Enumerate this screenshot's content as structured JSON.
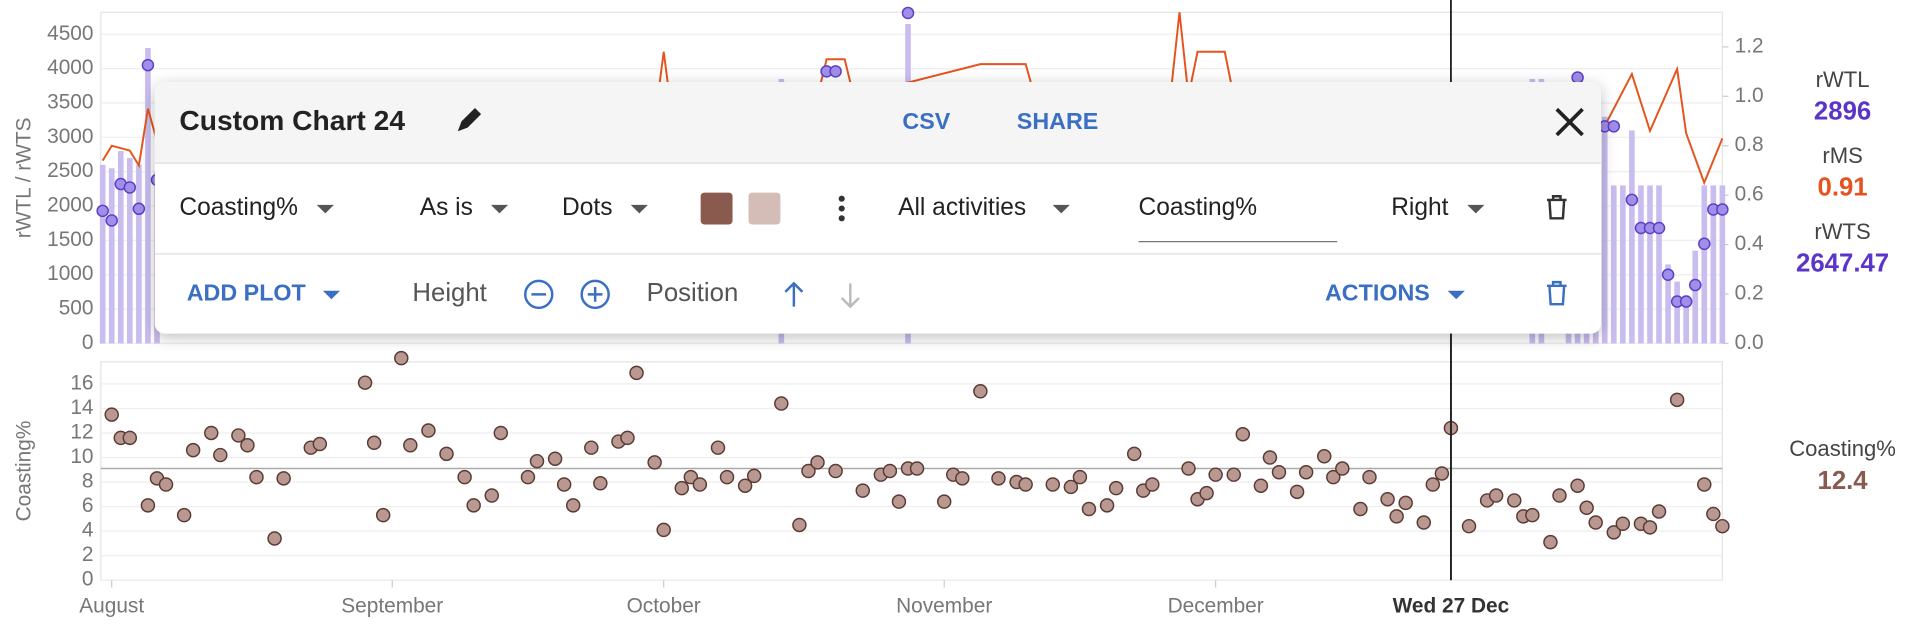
{
  "top_chart": {
    "type": "bar",
    "y_label": "rWTL / rWTS",
    "xlim": [
      -1.2,
      178
    ],
    "ylim": [
      0,
      4820
    ],
    "yticks": [
      0,
      500,
      1000,
      1500,
      2000,
      2500,
      3000,
      3500,
      4000,
      4500
    ],
    "y2lim": [
      0,
      1.34
    ],
    "y2ticks": [
      {
        "value": 0,
        "label": "0.0"
      },
      {
        "value": 0.2,
        "label": "0.2"
      },
      {
        "value": 0.4,
        "label": "0.4"
      },
      {
        "value": 0.6,
        "label": "0.6"
      },
      {
        "value": 0.8,
        "label": "0.8"
      },
      {
        "value": 1,
        "label": "1.0"
      },
      {
        "value": 1.2,
        "label": "1.2"
      }
    ],
    "grid": true,
    "bars": {
      "name": "rWTS",
      "color": "#c9bdf0",
      "x": [
        -1,
        0,
        1,
        2,
        3,
        4,
        5,
        74,
        88,
        157,
        158,
        161,
        162,
        163,
        164,
        165,
        166,
        167,
        168,
        169,
        170,
        171,
        172,
        173,
        174,
        175,
        176,
        177,
        178
      ],
      "values": [
        2600,
        2550,
        2800,
        2700,
        2600,
        4300,
        2500,
        3850,
        4650,
        3850,
        3850,
        3300,
        3300,
        3300,
        3300,
        3300,
        2300,
        2300,
        3100,
        2300,
        2300,
        2300,
        1150,
        900,
        700,
        1350,
        2300,
        2300,
        2300
      ]
    },
    "dots": {
      "name": "rWTL",
      "color": "#a18ee8",
      "x": [
        -1,
        0,
        1,
        2,
        3,
        4,
        5,
        79,
        80,
        88,
        162,
        163,
        164,
        165,
        166,
        168,
        169,
        170,
        171,
        172,
        173,
        174,
        175,
        176,
        177,
        178
      ],
      "values": [
        1930,
        1790,
        2320,
        2270,
        1960,
        4050,
        2380,
        3960,
        3960,
        4810,
        3870,
        3160,
        3160,
        3160,
        3160,
        2090,
        1680,
        1680,
        1680,
        1000,
        610,
        610,
        850,
        1450,
        1950,
        1950
      ]
    },
    "line": {
      "name": "rMS",
      "color": "#e5541f",
      "axis": "y2",
      "x": [
        -1,
        0,
        2,
        3,
        4,
        5,
        10,
        60,
        61,
        62,
        78,
        79,
        81,
        82,
        96,
        101,
        102,
        110,
        111,
        117,
        118,
        119,
        120,
        123,
        124,
        160,
        165,
        168,
        170,
        173,
        174,
        176,
        178
      ],
      "values": [
        0.74,
        0.8,
        0.78,
        0.72,
        0.95,
        0.82,
        0.8,
        0.9,
        1.18,
        0.9,
        1.0,
        1.15,
        1.15,
        1.0,
        1.13,
        1.13,
        1.0,
        1.05,
        0.98,
        1.0,
        1.34,
        1.0,
        1.18,
        1.18,
        1.0,
        0.95,
        0.88,
        1.09,
        0.86,
        1.11,
        0.85,
        0.65,
        0.83
      ]
    }
  },
  "bottom_chart": {
    "type": "scatter",
    "y_label": "Coasting%",
    "xlim": [
      -1.2,
      178
    ],
    "ylim": [
      0,
      17.8
    ],
    "yticks": [
      0,
      2,
      4,
      6,
      8,
      10,
      12,
      14,
      16
    ],
    "grid": true,
    "reference_line": 9.1,
    "color": "#b89890",
    "x": [
      0,
      1,
      2,
      4,
      5,
      6,
      8,
      9,
      11,
      12,
      14,
      15,
      16,
      18,
      19,
      22,
      23,
      28,
      29,
      30,
      32,
      33,
      35,
      37,
      39,
      40,
      42,
      43,
      46,
      47,
      49,
      50,
      51,
      53,
      54,
      56,
      57,
      58,
      60,
      61,
      63,
      64,
      65,
      67,
      68,
      70,
      71,
      74,
      76,
      77,
      78,
      80,
      83,
      85,
      86,
      87,
      88,
      89,
      92,
      93,
      94,
      96,
      98,
      100,
      101,
      104,
      106,
      107,
      108,
      110,
      111,
      113,
      114,
      115,
      119,
      120,
      121,
      122,
      124,
      125,
      127,
      128,
      129,
      131,
      132,
      134,
      135,
      136,
      138,
      139,
      141,
      142,
      143,
      145,
      146,
      147,
      148,
      150,
      152,
      153,
      155,
      156,
      157,
      159,
      160,
      162,
      163,
      164,
      166,
      167,
      169,
      170,
      171,
      173,
      176,
      177,
      178
    ],
    "values": [
      13.5,
      11.6,
      11.6,
      6.1,
      8.3,
      7.8,
      5.3,
      10.6,
      12.0,
      10.2,
      11.8,
      11.0,
      8.4,
      3.4,
      8.3,
      10.8,
      11.1,
      16.1,
      11.2,
      5.3,
      18.1,
      11.0,
      12.2,
      10.3,
      8.4,
      6.1,
      6.9,
      12.0,
      8.4,
      9.7,
      9.9,
      7.8,
      6.1,
      10.8,
      7.9,
      11.3,
      11.6,
      16.9,
      9.6,
      4.1,
      7.5,
      8.4,
      7.8,
      10.8,
      8.4,
      7.7,
      8.5,
      14.4,
      4.5,
      8.9,
      9.6,
      8.9,
      7.3,
      8.6,
      8.9,
      6.4,
      9.1,
      9.1,
      6.4,
      8.6,
      8.3,
      15.4,
      8.3,
      8.0,
      7.8,
      7.8,
      7.6,
      8.4,
      5.8,
      6.1,
      7.5,
      10.3,
      7.3,
      7.8,
      9.1,
      6.6,
      7.1,
      8.6,
      8.6,
      11.9,
      7.7,
      10.0,
      8.8,
      7.2,
      8.8,
      10.1,
      8.4,
      9.1,
      5.8,
      8.4,
      6.6,
      5.2,
      6.3,
      4.7,
      7.8,
      8.7,
      12.4,
      4.4,
      6.5,
      6.9,
      6.5,
      5.2,
      5.3,
      3.1,
      6.9,
      7.7,
      5.9,
      4.7,
      3.9,
      4.6,
      4.6,
      4.3,
      5.6,
      14.7,
      7.8,
      5.4,
      4.4
    ]
  },
  "x_axis": {
    "xticks": [
      {
        "value": 0,
        "label": "August"
      },
      {
        "value": 31,
        "label": "September"
      },
      {
        "value": 61,
        "label": "October"
      },
      {
        "value": 92,
        "label": "November"
      },
      {
        "value": 122,
        "label": "December"
      },
      {
        "value": 148,
        "label": "Wed 27 Dec"
      }
    ],
    "cursor_tick": 5
  },
  "dialog": {
    "title": "Custom Chart 24",
    "csv": "CSV",
    "share": "SHARE",
    "plot": {
      "metric": "Coasting%",
      "transform": "As is",
      "style": "Dots",
      "colors": [
        "#8a5a4e",
        "#d4bdb7"
      ],
      "filter": "All activities",
      "label": "Coasting%",
      "axis": "Right"
    },
    "add_plot": "ADD PLOT",
    "height": "Height",
    "position": "Position",
    "actions": "ACTIONS"
  },
  "readout": [
    {
      "name": "rWTL",
      "value": 2896,
      "color": "#5b34c9"
    },
    {
      "name": "rMS",
      "value": 0.91,
      "color": "#e5541f"
    },
    {
      "name": "rWTS",
      "value": 2647.47,
      "color": "#5b34c9"
    },
    {
      "name": "Coasting%",
      "value": 12.4,
      "color": "#8a5a4e"
    }
  ]
}
